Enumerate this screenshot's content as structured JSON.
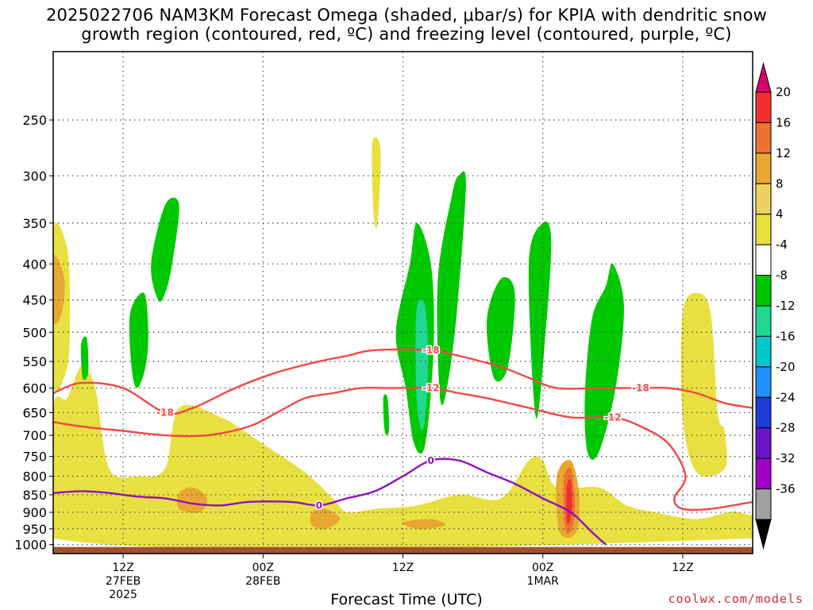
{
  "chart_data": {
    "type": "heatmap",
    "title_line1": "2025022706 NAM3KM Forecast Omega (shaded, μbar/s) for KPIA with dendritic snow",
    "title_line2": "growth region (contoured, red, ºC) and freezing level (contoured, purple, ºC)",
    "xlabel": "Forecast Time (UTC)",
    "ylabel": "",
    "y_axis": {
      "scale": "log",
      "unit": "mb",
      "range": [
        1030,
        200
      ],
      "ticks": [
        250,
        300,
        350,
        400,
        450,
        500,
        550,
        600,
        650,
        700,
        750,
        800,
        850,
        900,
        950,
        1000
      ]
    },
    "x_axis": {
      "range_hours": [
        6,
        56
      ],
      "ticks": [
        {
          "hour": 11,
          "label1": "12Z",
          "label2": "27FEB",
          "label3": "2025"
        },
        {
          "hour": 21,
          "label1": "00Z",
          "label2": "28FEB",
          "label3": ""
        },
        {
          "hour": 31,
          "label1": "12Z",
          "label2": "",
          "label3": ""
        },
        {
          "hour": 41,
          "label1": "00Z",
          "label2": "1MAR",
          "label3": ""
        },
        {
          "hour": 51,
          "label1": "12Z",
          "label2": "",
          "label3": ""
        }
      ]
    },
    "grid": true,
    "colorbar": {
      "labels": [
        "20",
        "16",
        "12",
        "8",
        "4",
        "-4",
        "-8",
        "-12",
        "-16",
        "-20",
        "-24",
        "-28",
        "-32",
        "-36"
      ],
      "colors": [
        "#d8006a",
        "#f03030",
        "#f07030",
        "#e8a830",
        "#f0d060",
        "#e8e040",
        "#ffffff",
        "#00c800",
        "#20d890",
        "#00c8c8",
        "#1e90ff",
        "#1e3cd8",
        "#6a14c8",
        "#9e00c8",
        "#a0a0a0",
        "#000000"
      ]
    },
    "omega_regions": [
      {
        "level": "4-8",
        "color": "#e8e040",
        "points": [
          [
            6,
            640
          ],
          [
            7,
            620
          ],
          [
            8,
            560
          ],
          [
            9,
            600
          ],
          [
            10,
            780
          ],
          [
            12,
            800
          ],
          [
            14,
            780
          ],
          [
            15,
            640
          ],
          [
            18,
            660
          ],
          [
            21,
            720
          ],
          [
            24,
            790
          ],
          [
            26,
            860
          ],
          [
            27,
            900
          ],
          [
            29,
            890
          ],
          [
            32,
            880
          ],
          [
            35,
            850
          ],
          [
            38,
            860
          ],
          [
            40,
            760
          ],
          [
            41,
            760
          ],
          [
            42,
            830
          ],
          [
            45,
            830
          ],
          [
            47,
            880
          ],
          [
            49,
            900
          ],
          [
            52,
            920
          ],
          [
            55,
            900
          ],
          [
            56,
            980
          ],
          [
            6,
            980
          ]
        ]
      },
      {
        "level": "4-8",
        "color": "#e8e040",
        "points": [
          [
            51,
            470
          ],
          [
            52,
            440
          ],
          [
            53,
            470
          ],
          [
            53.5,
            650
          ],
          [
            54,
            690
          ],
          [
            54,
            780
          ],
          [
            52,
            790
          ],
          [
            51,
            660
          ]
        ]
      },
      {
        "level": "4-8",
        "color": "#e8e040",
        "points": [
          [
            6,
            360
          ],
          [
            7,
            380
          ],
          [
            7.2,
            470
          ],
          [
            7,
            560
          ],
          [
            6,
            590
          ]
        ]
      },
      {
        "level": "4-8",
        "color": "#e8e040",
        "points": [
          [
            28.8,
            270
          ],
          [
            29.4,
            275
          ],
          [
            29.2,
            350
          ],
          [
            28.9,
            340
          ]
        ]
      },
      {
        "level": "8-12",
        "color": "#e8a830",
        "points": [
          [
            6,
            390
          ],
          [
            6.8,
            420
          ],
          [
            6.6,
            470
          ],
          [
            6,
            480
          ]
        ]
      },
      {
        "level": "8-12",
        "color": "#e8a830",
        "points": [
          [
            15,
            845
          ],
          [
            16,
            830
          ],
          [
            17,
            860
          ],
          [
            16.5,
            900
          ],
          [
            15,
            890
          ]
        ]
      },
      {
        "level": "8-12",
        "color": "#e8a830",
        "points": [
          [
            24.5,
            900
          ],
          [
            25.5,
            890
          ],
          [
            26.5,
            920
          ],
          [
            25.5,
            950
          ],
          [
            24.5,
            940
          ]
        ]
      },
      {
        "level": "8-12",
        "color": "#e8a830",
        "points": [
          [
            31,
            930
          ],
          [
            33,
            920
          ],
          [
            34,
            940
          ],
          [
            32,
            950
          ]
        ]
      },
      {
        "level": "8-12",
        "color": "#e8a830",
        "points": [
          [
            42,
            800
          ],
          [
            43,
            760
          ],
          [
            43.6,
            850
          ],
          [
            43.4,
            960
          ],
          [
            42.2,
            960
          ]
        ]
      },
      {
        "level": "12-16",
        "color": "#f07030",
        "points": [
          [
            42.5,
            810
          ],
          [
            43,
            780
          ],
          [
            43.3,
            870
          ],
          [
            43.1,
            950
          ],
          [
            42.6,
            950
          ]
        ]
      },
      {
        "level": "16-20",
        "color": "#f03030",
        "points": [
          [
            42.7,
            830
          ],
          [
            43,
            810
          ],
          [
            43.1,
            880
          ],
          [
            42.9,
            930
          ],
          [
            42.7,
            920
          ]
        ]
      },
      {
        "level": "-4 to -8",
        "color": "#00c800",
        "points": [
          [
            30.5,
            500
          ],
          [
            31.5,
            400
          ],
          [
            32,
            350
          ],
          [
            33,
            400
          ],
          [
            33.2,
            520
          ],
          [
            32.6,
            720
          ],
          [
            31.8,
            720
          ],
          [
            31.2,
            600
          ]
        ]
      },
      {
        "level": "-4 to -8",
        "color": "#00c800",
        "points": [
          [
            33.5,
            420
          ],
          [
            34.5,
            320
          ],
          [
            35,
            300
          ],
          [
            35.5,
            310
          ],
          [
            34.8,
            480
          ],
          [
            34,
            620
          ],
          [
            33.6,
            600
          ]
        ]
      },
      {
        "level": "-4 to -8",
        "color": "#00c800",
        "points": [
          [
            37,
            480
          ],
          [
            38,
            420
          ],
          [
            39,
            440
          ],
          [
            38.5,
            560
          ],
          [
            37.5,
            580
          ]
        ]
      },
      {
        "level": "-4 to -8",
        "color": "#00c800",
        "points": [
          [
            40,
            400
          ],
          [
            41,
            350
          ],
          [
            41.6,
            370
          ],
          [
            41.2,
            500
          ],
          [
            40.5,
            660
          ]
        ]
      },
      {
        "level": "-4 to -8",
        "color": "#00c800",
        "points": [
          [
            44,
            620
          ],
          [
            44.5,
            480
          ],
          [
            45.5,
            430
          ],
          [
            46,
            400
          ],
          [
            46.8,
            460
          ],
          [
            46.2,
            600
          ],
          [
            45,
            740
          ],
          [
            44.2,
            740
          ]
        ]
      },
      {
        "level": "-4 to -8",
        "color": "#00c800",
        "points": [
          [
            13,
            400
          ],
          [
            14,
            330
          ],
          [
            15,
            330
          ],
          [
            14.5,
            400
          ],
          [
            14,
            440
          ],
          [
            13.5,
            450
          ]
        ]
      },
      {
        "level": "-4 to -8",
        "color": "#00c800",
        "points": [
          [
            11.5,
            470
          ],
          [
            12.5,
            440
          ],
          [
            12.8,
            500
          ],
          [
            12.6,
            560
          ],
          [
            12,
            600
          ],
          [
            11.6,
            560
          ]
        ]
      },
      {
        "level": "-4 to -8",
        "color": "#00c800",
        "points": [
          [
            8,
            520
          ],
          [
            8.4,
            510
          ],
          [
            8.5,
            570
          ],
          [
            8.1,
            580
          ]
        ]
      },
      {
        "level": "-4 to -8",
        "color": "#00c800",
        "points": [
          [
            29.6,
            620
          ],
          [
            29.9,
            620
          ],
          [
            30,
            690
          ],
          [
            29.7,
            690
          ]
        ]
      },
      {
        "level": "-8 to -12",
        "color": "#20d890",
        "points": [
          [
            32,
            460
          ],
          [
            32.6,
            460
          ],
          [
            32.8,
            560
          ],
          [
            32.5,
            680
          ],
          [
            32.1,
            660
          ],
          [
            31.9,
            560
          ]
        ]
      }
    ],
    "isotherms": [
      {
        "label": "-18",
        "color": "#f04848",
        "points": [
          [
            6,
            610
          ],
          [
            8,
            590
          ],
          [
            11,
            600
          ],
          [
            14,
            650
          ],
          [
            16,
            640
          ],
          [
            19,
            600
          ],
          [
            22,
            570
          ],
          [
            25,
            550
          ],
          [
            27,
            540
          ],
          [
            29,
            530
          ],
          [
            33,
            530
          ],
          [
            35,
            540
          ],
          [
            38,
            560
          ],
          [
            40,
            580
          ],
          [
            42,
            600
          ],
          [
            45,
            600
          ],
          [
            48,
            600
          ],
          [
            50,
            600
          ],
          [
            52,
            610
          ],
          [
            54,
            630
          ],
          [
            56,
            640
          ]
        ]
      },
      {
        "label": "-12",
        "color": "#f04848",
        "points": [
          [
            6,
            670
          ],
          [
            8,
            680
          ],
          [
            11,
            690
          ],
          [
            14,
            700
          ],
          [
            17,
            700
          ],
          [
            20,
            680
          ],
          [
            22,
            650
          ],
          [
            24,
            620
          ],
          [
            26,
            610
          ],
          [
            28,
            600
          ],
          [
            30,
            600
          ],
          [
            33,
            600
          ],
          [
            35,
            610
          ],
          [
            37,
            620
          ],
          [
            40,
            640
          ],
          [
            43,
            660
          ],
          [
            46,
            660
          ],
          [
            48,
            680
          ],
          [
            50,
            720
          ],
          [
            51.2,
            800
          ],
          [
            50.4,
            860
          ],
          [
            51,
            890
          ],
          [
            53,
            890
          ],
          [
            56,
            870
          ]
        ]
      }
    ],
    "freezing_level": {
      "label": "0",
      "color": "#9010c0",
      "points": [
        [
          6,
          845
        ],
        [
          8,
          840
        ],
        [
          10,
          845
        ],
        [
          12,
          855
        ],
        [
          14,
          860
        ],
        [
          16,
          875
        ],
        [
          18,
          880
        ],
        [
          20,
          870
        ],
        [
          23,
          870
        ],
        [
          25,
          880
        ],
        [
          27,
          860
        ],
        [
          29,
          840
        ],
        [
          31,
          800
        ],
        [
          33,
          760
        ],
        [
          35,
          760
        ],
        [
          37,
          790
        ],
        [
          39,
          820
        ],
        [
          41,
          860
        ],
        [
          43,
          900
        ],
        [
          44.5,
          960
        ],
        [
          45.5,
          1000
        ]
      ]
    },
    "ground": {
      "color": "#a0522d",
      "pressure_top": 1008
    }
  },
  "credit": "coolwx.com/models"
}
